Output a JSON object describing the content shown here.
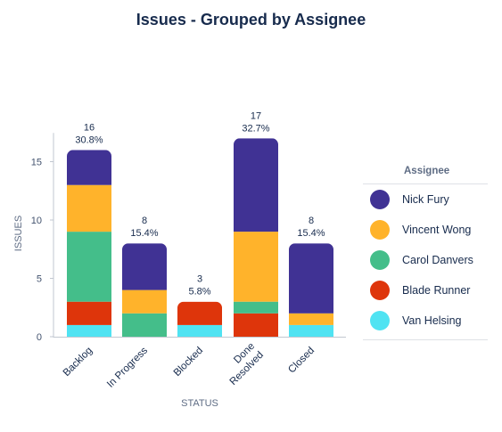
{
  "chart_data": {
    "type": "bar",
    "stacked": true,
    "title": "Issues - Grouped by Assignee",
    "xlabel": "STATUS",
    "ylabel": "ISSUES",
    "ylim": [
      0,
      17
    ],
    "yticks": [
      0,
      5,
      10,
      15
    ],
    "grid": false,
    "legend_title": "Assignee",
    "legend_position": "right",
    "categories": [
      [
        "Backlog"
      ],
      [
        "In Progress"
      ],
      [
        "Blocked"
      ],
      [
        "Done",
        "Resolved"
      ],
      [
        "Closed"
      ]
    ],
    "totals": [
      16,
      8,
      3,
      17,
      8
    ],
    "percent_labels": [
      "30.8%",
      "15.4%",
      "5.8%",
      "32.7%",
      "15.4%"
    ],
    "series": [
      {
        "name": "Van Helsing",
        "color": "#50E3F2",
        "values": [
          1,
          0,
          1,
          0,
          1
        ]
      },
      {
        "name": "Blade Runner",
        "color": "#DE350B",
        "values": [
          2,
          0,
          2,
          2,
          0
        ]
      },
      {
        "name": "Carol Danvers",
        "color": "#44BE8A",
        "values": [
          6,
          2,
          0,
          1,
          0
        ]
      },
      {
        "name": "Vincent Wong",
        "color": "#FFB32B",
        "values": [
          4,
          2,
          0,
          6,
          1
        ]
      },
      {
        "name": "Nick Fury",
        "color": "#403294",
        "values": [
          3,
          4,
          0,
          8,
          6
        ]
      }
    ],
    "legend_order": [
      "Nick Fury",
      "Vincent Wong",
      "Carol Danvers",
      "Blade Runner",
      "Van Helsing"
    ]
  }
}
